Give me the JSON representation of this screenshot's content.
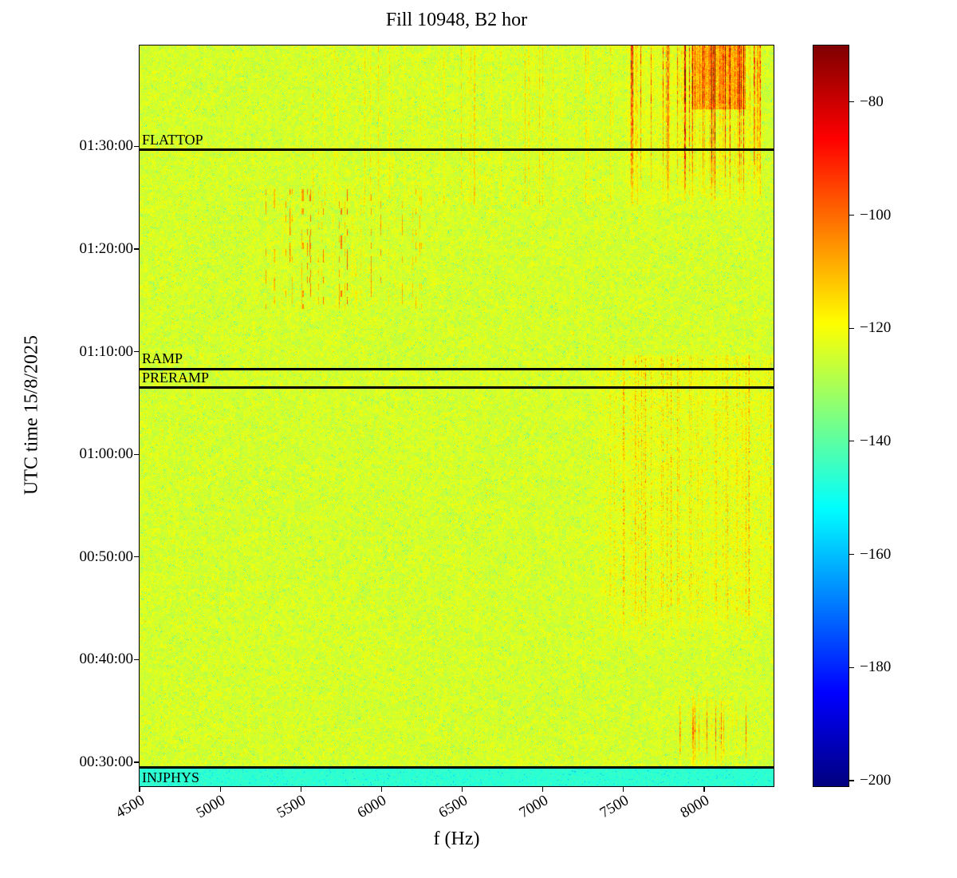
{
  "title": "Fill 10948, B2 hor",
  "chart_data": {
    "type": "heatmap",
    "title": "Fill 10948, B2 hor",
    "xlabel": "f (Hz)",
    "ylabel": "UTC time 15/8/2025",
    "xlim": [
      4500,
      8430
    ],
    "ylim_seconds": [
      1660,
      5990
    ],
    "grid": false,
    "x_ticks": [
      {
        "value": 4500,
        "label": "4500"
      },
      {
        "value": 5000,
        "label": "5000"
      },
      {
        "value": 5500,
        "label": "5500"
      },
      {
        "value": 6000,
        "label": "6000"
      },
      {
        "value": 6500,
        "label": "6500"
      },
      {
        "value": 7000,
        "label": "7000"
      },
      {
        "value": 7500,
        "label": "7500"
      },
      {
        "value": 8000,
        "label": "8000"
      }
    ],
    "y_ticks": [
      {
        "seconds": 1800,
        "label": "00:30:00"
      },
      {
        "seconds": 2400,
        "label": "00:40:00"
      },
      {
        "seconds": 3000,
        "label": "00:50:00"
      },
      {
        "seconds": 3600,
        "label": "01:00:00"
      },
      {
        "seconds": 4200,
        "label": "01:10:00"
      },
      {
        "seconds": 4800,
        "label": "01:20:00"
      },
      {
        "seconds": 5400,
        "label": "01:30:00"
      }
    ],
    "colorbar": {
      "colormap": "jet",
      "vmin": -201,
      "vmax": -70,
      "ticks": [
        {
          "value": -80,
          "label": "−80"
        },
        {
          "value": -100,
          "label": "−100"
        },
        {
          "value": -120,
          "label": "−120"
        },
        {
          "value": -140,
          "label": "−140"
        },
        {
          "value": -160,
          "label": "−160"
        },
        {
          "value": -180,
          "label": "−180"
        },
        {
          "value": -200,
          "label": "−200"
        }
      ]
    },
    "annotations": [
      {
        "name": "FLATTOP",
        "label": "FLATTOP",
        "time": "01:29:40",
        "seconds": 5380,
        "label_position": "above"
      },
      {
        "name": "RAMP",
        "label": "RAMP",
        "time": "01:08:20",
        "seconds": 4100,
        "label_position": "above"
      },
      {
        "name": "PRERAMP",
        "label": "PRERAMP",
        "time": "01:06:30",
        "seconds": 3990,
        "label_position": "above"
      },
      {
        "name": "INJPHYS",
        "label": "INJPHYS",
        "time": "00:29:30",
        "seconds": 1770,
        "label_position": "below"
      }
    ],
    "background_level_db": -124,
    "features": [
      {
        "name": "injection-band",
        "description": "Uniform cyan band below the INJPHYS line",
        "time_range": [
          "00:27:40",
          "00:29:30"
        ],
        "approx_level_db": -146
      },
      {
        "name": "low-right-streaks",
        "description": "Strong red vertical streaks just after injection",
        "freq_range_hz": [
          7850,
          8330
        ],
        "time_range": [
          "00:29:30",
          "00:37:00"
        ],
        "approx_level_db": -95
      },
      {
        "name": "mid-right-cloud",
        "description": "Dense orange speckle cloud with vertical striations",
        "freq_range_hz": [
          7280,
          8430
        ],
        "time_range": [
          "00:41:00",
          "01:09:00"
        ],
        "approx_level_db": -110
      },
      {
        "name": "center-dashes",
        "description": "Sparse short orange vertical dashes",
        "freq_range_hz": [
          5250,
          6250
        ],
        "time_range": [
          "01:15:00",
          "01:26:00"
        ],
        "approx_level_db": -105
      },
      {
        "name": "top-right-streaks",
        "description": "Intense red vertical lines, strongest at the top of the plot",
        "freq_range_hz": [
          7520,
          8360
        ],
        "time_range": [
          "01:24:00",
          "01:39:50"
        ],
        "approx_level_db": -85
      },
      {
        "name": "background",
        "description": "Mottled yellow-green noise floor with scattered cyan and orange speckles",
        "approx_level_db": -124
      }
    ]
  }
}
